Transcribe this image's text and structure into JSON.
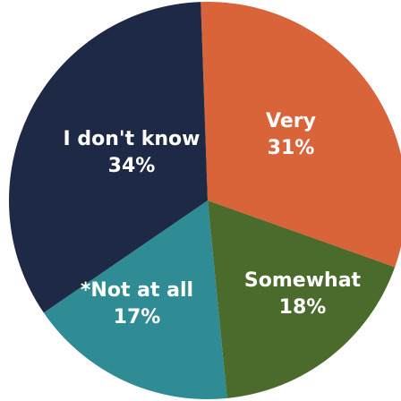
{
  "chart_data": {
    "type": "pie",
    "slices": [
      {
        "label": "Very",
        "value": 31,
        "value_label": "31%",
        "color": "#d9643a"
      },
      {
        "label": "Somewhat",
        "value": 18,
        "value_label": "18%",
        "color": "#4a6b2c"
      },
      {
        "label": "*Not at all",
        "value": 17,
        "value_label": "17%",
        "color": "#2f8c95"
      },
      {
        "label": "I don't know",
        "value": 34,
        "value_label": "34%",
        "color": "#1e2a45"
      }
    ],
    "start_angle_deg": -2,
    "direction": "clockwise"
  }
}
